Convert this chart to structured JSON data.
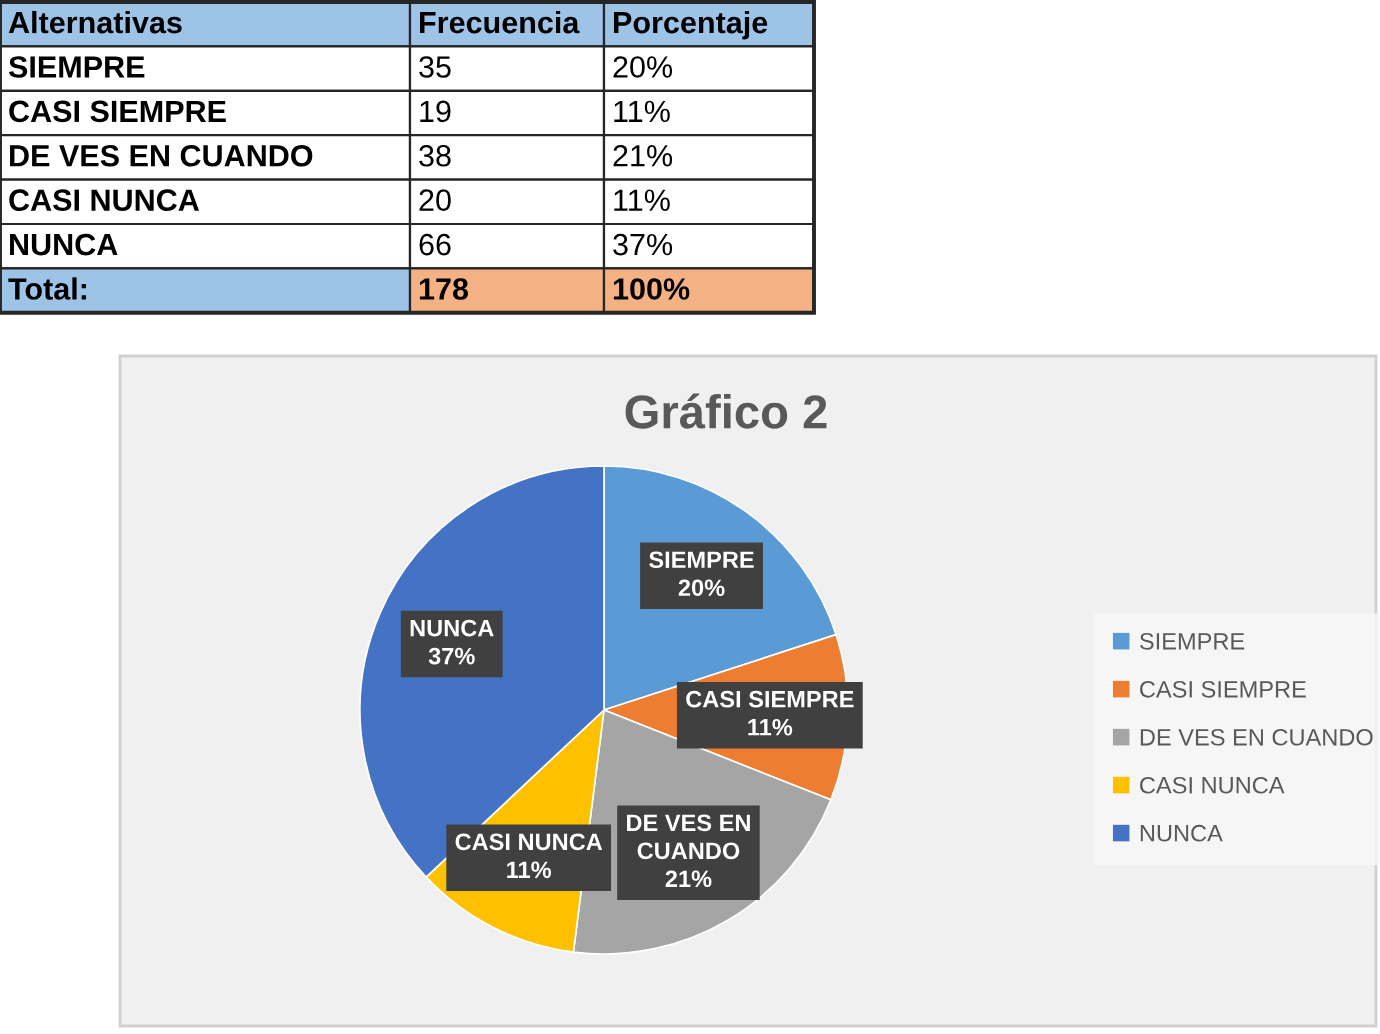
{
  "chart_data": {
    "type": "pie",
    "title": "Gráfico 2",
    "categories": [
      "SIEMPRE",
      "CASI SIEMPRE",
      "DE VES EN CUANDO",
      "CASI NUNCA",
      "NUNCA"
    ],
    "values": [
      20,
      11,
      21,
      11,
      37
    ],
    "value_labels": [
      "20%",
      "11%",
      "21%",
      "11%",
      "37%"
    ],
    "colors": [
      "#5b9bd5",
      "#ed7d31",
      "#a5a5a5",
      "#ffc000",
      "#4472c4"
    ],
    "legend": "right",
    "annotations": [
      "Alternativas",
      "Frecuencia",
      "Porcentaje",
      "35",
      "19",
      "38",
      "20",
      "66",
      "Total:",
      "178",
      "100%"
    ]
  }
}
